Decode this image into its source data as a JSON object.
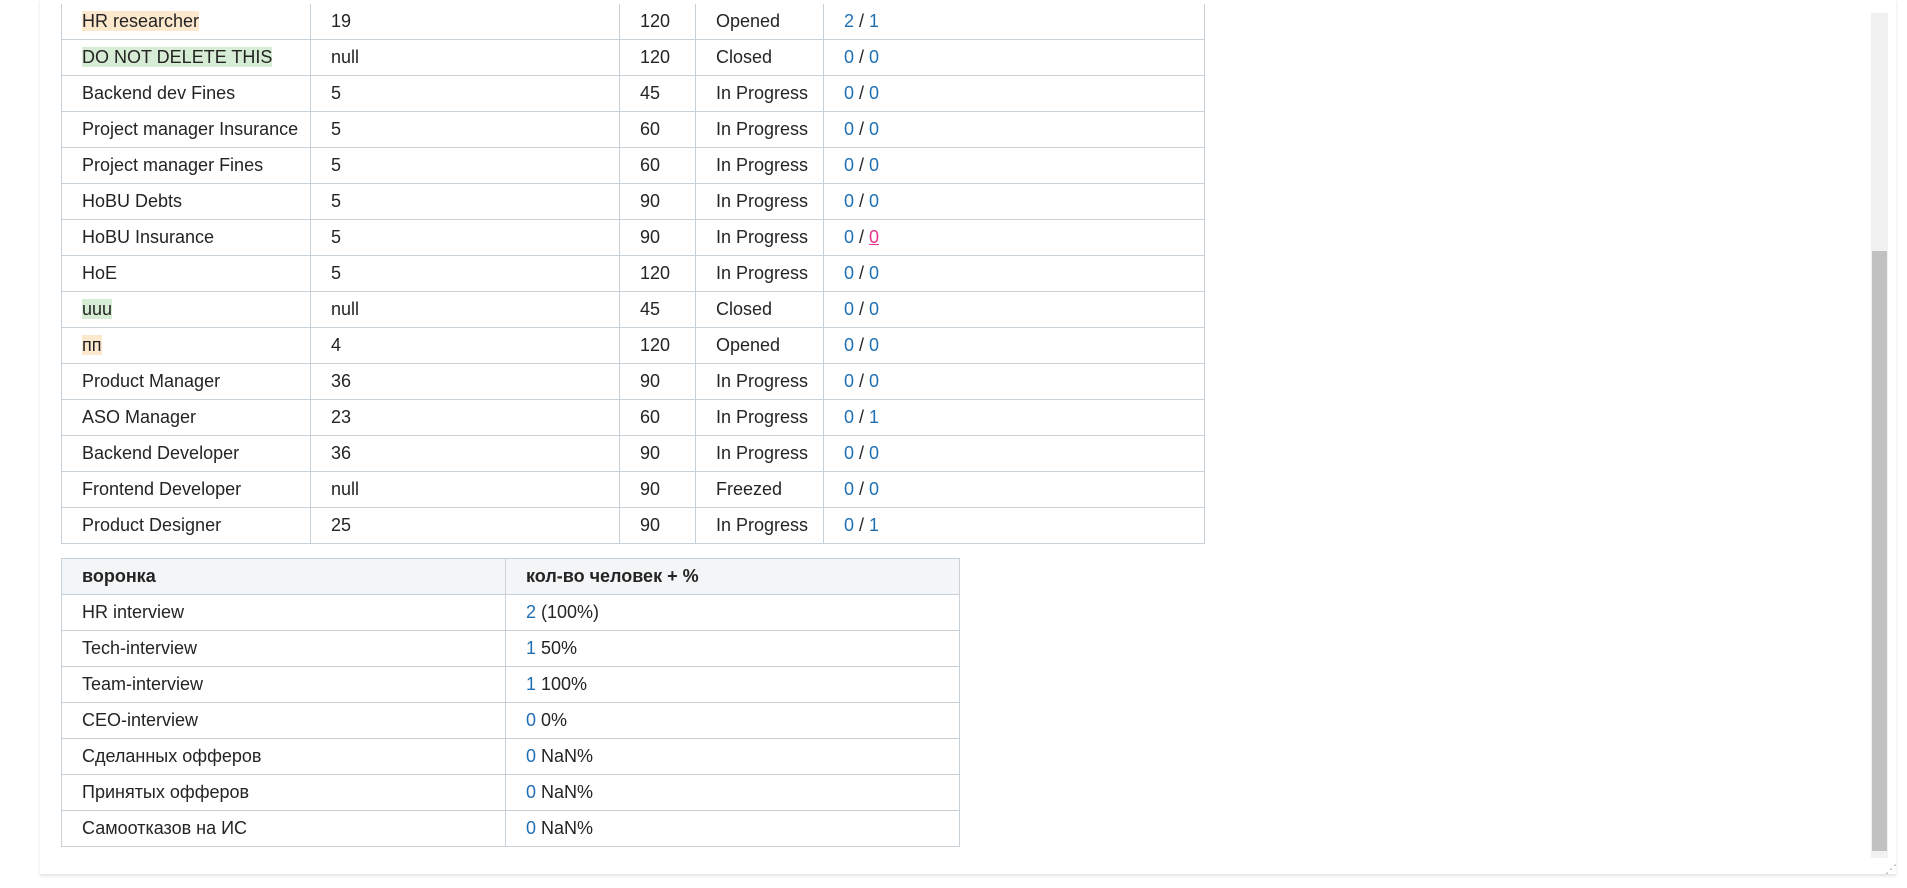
{
  "positions": {
    "rows": [
      {
        "name": "HR researcher",
        "highlight": "orange",
        "count": "19",
        "days": "120",
        "status": "Opened",
        "a": "2",
        "b": "1"
      },
      {
        "name": "DO NOT DELETE THIS",
        "highlight": "green",
        "count": "null",
        "days": "120",
        "status": "Closed",
        "a": "0",
        "b": "0"
      },
      {
        "name": "Backend dev Fines",
        "highlight": "",
        "count": "5",
        "days": "45",
        "status": "In Progress",
        "a": "0",
        "b": "0"
      },
      {
        "name": "Project manager Insurance",
        "highlight": "",
        "count": "5",
        "days": "60",
        "status": "In Progress",
        "a": "0",
        "b": "0"
      },
      {
        "name": "Project manager Fines",
        "highlight": "",
        "count": "5",
        "days": "60",
        "status": "In Progress",
        "a": "0",
        "b": "0"
      },
      {
        "name": "HoBU Debts",
        "highlight": "",
        "count": "5",
        "days": "90",
        "status": "In Progress",
        "a": "0",
        "b": "0"
      },
      {
        "name": "HoBU Insurance",
        "highlight": "",
        "count": "5",
        "days": "90",
        "status": "In Progress",
        "a": "0",
        "b": "0",
        "b_style": "alt"
      },
      {
        "name": "HoE",
        "highlight": "",
        "count": "5",
        "days": "120",
        "status": "In Progress",
        "a": "0",
        "b": "0"
      },
      {
        "name": "uuu",
        "highlight": "green",
        "count": "null",
        "days": "45",
        "status": "Closed",
        "a": "0",
        "b": "0"
      },
      {
        "name": "пп",
        "highlight": "orange",
        "count": "4",
        "days": "120",
        "status": "Opened",
        "a": "0",
        "b": "0"
      },
      {
        "name": "Product Manager",
        "highlight": "",
        "count": "36",
        "days": "90",
        "status": "In Progress",
        "a": "0",
        "b": "0"
      },
      {
        "name": "ASO Manager",
        "highlight": "",
        "count": "23",
        "days": "60",
        "status": "In Progress",
        "a": "0",
        "b": "1"
      },
      {
        "name": "Backend Developer",
        "highlight": "",
        "count": "36",
        "days": "90",
        "status": "In Progress",
        "a": "0",
        "b": "0"
      },
      {
        "name": "Frontend Developer",
        "highlight": "",
        "count": "null",
        "days": "90",
        "status": "Freezed",
        "a": "0",
        "b": "0"
      },
      {
        "name": "Product Designer",
        "highlight": "",
        "count": "25",
        "days": "90",
        "status": "In Progress",
        "a": "0",
        "b": "1"
      }
    ],
    "separator": " / "
  },
  "funnel": {
    "headers": [
      "воронка",
      "кол-во человек + %"
    ],
    "rows": [
      {
        "stage": "HR interview",
        "count": "2",
        "percent": " (100%)"
      },
      {
        "stage": "Tech-interview",
        "count": "1",
        "percent": " 50%"
      },
      {
        "stage": "Team-interview",
        "count": "1",
        "percent": " 100%"
      },
      {
        "stage": "CEO-interview",
        "count": "0",
        "percent": " 0%"
      },
      {
        "stage": "Сделанных офферов",
        "count": "0",
        "percent": " NaN%"
      },
      {
        "stage": "Принятых офферов",
        "count": "0",
        "percent": " NaN%"
      },
      {
        "stage": "Самоотказов на ИС",
        "count": "0",
        "percent": " NaN%"
      }
    ]
  },
  "colors": {
    "link": "#1f6fb3",
    "link_alt": "#e8358c",
    "highlight_orange": "#fbe8cd",
    "highlight_green": "#d7ecd4"
  },
  "icons": {
    "resize": "resize-grip-icon"
  }
}
